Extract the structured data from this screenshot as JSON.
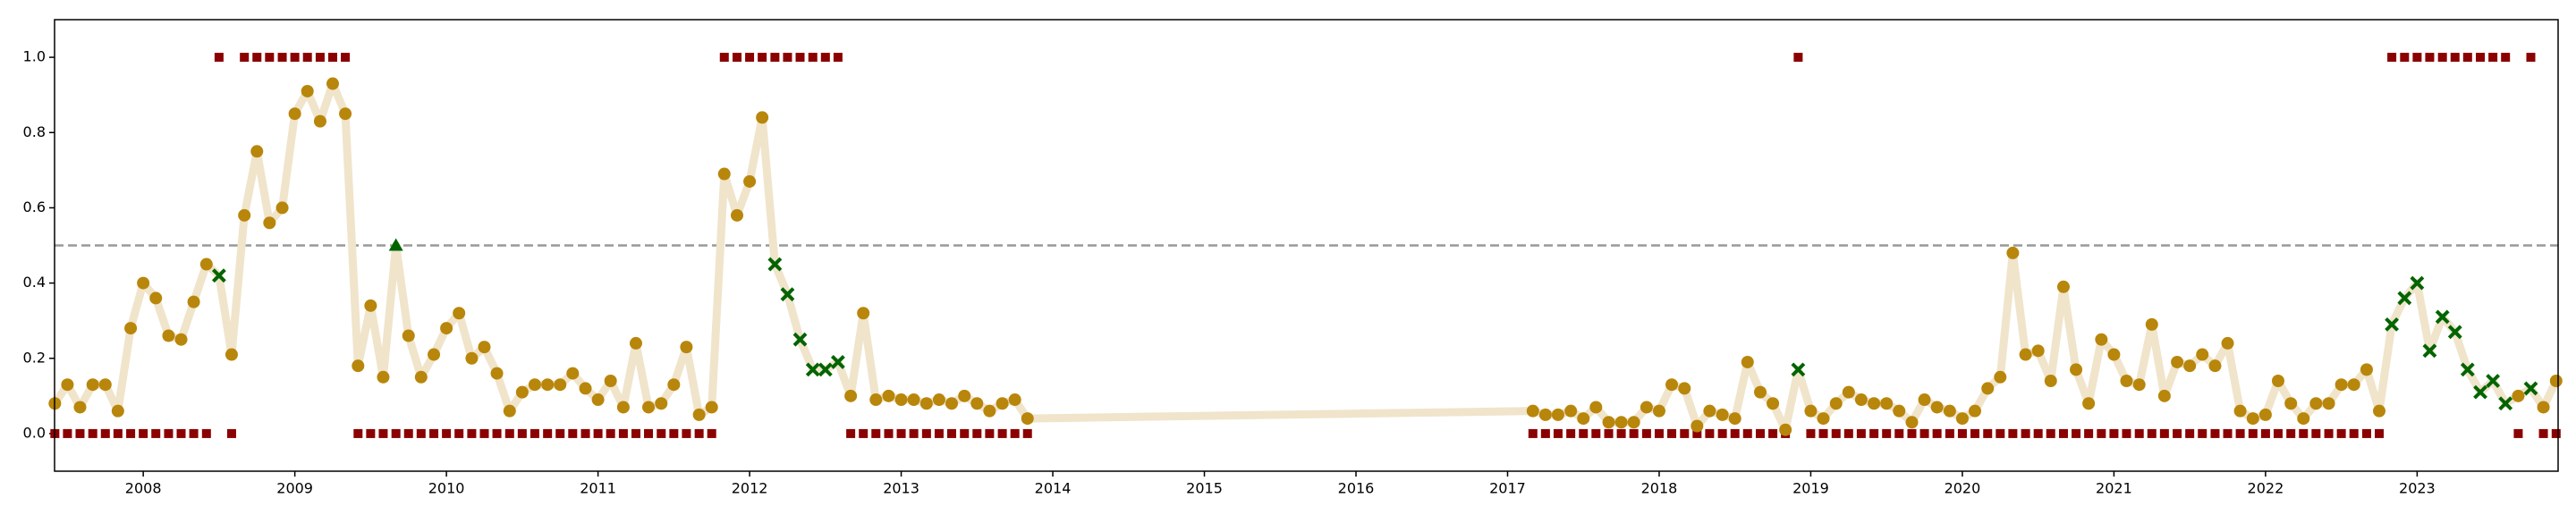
{
  "chart_data": {
    "type": "line",
    "x": [
      2007.417,
      2007.5,
      2007.583,
      2007.667,
      2007.75,
      2007.833,
      2007.917,
      2008,
      2008.083,
      2008.167,
      2008.25,
      2008.333,
      2008.417,
      2008.5,
      2008.583,
      2008.667,
      2008.75,
      2008.833,
      2008.917,
      2009,
      2009.083,
      2009.167,
      2009.25,
      2009.333,
      2009.417,
      2009.5,
      2009.583,
      2009.667,
      2009.75,
      2009.833,
      2009.917,
      2010,
      2010.083,
      2010.167,
      2010.25,
      2010.333,
      2010.417,
      2010.5,
      2010.583,
      2010.667,
      2010.75,
      2010.833,
      2010.917,
      2011,
      2011.083,
      2011.167,
      2011.25,
      2011.333,
      2011.417,
      2011.5,
      2011.583,
      2011.667,
      2011.75,
      2011.833,
      2011.917,
      2012,
      2012.083,
      2012.167,
      2012.25,
      2012.333,
      2012.417,
      2012.5,
      2012.583,
      2012.667,
      2012.75,
      2012.833,
      2012.917,
      2013,
      2013.083,
      2013.167,
      2013.25,
      2013.333,
      2013.417,
      2013.5,
      2013.583,
      2013.667,
      2013.75,
      2013.833,
      2017.167,
      2017.25,
      2017.333,
      2017.417,
      2017.5,
      2017.583,
      2017.667,
      2017.75,
      2017.833,
      2017.917,
      2018,
      2018.083,
      2018.167,
      2018.25,
      2018.333,
      2018.417,
      2018.5,
      2018.583,
      2018.667,
      2018.75,
      2018.833,
      2018.917,
      2019,
      2019.083,
      2019.167,
      2019.25,
      2019.333,
      2019.417,
      2019.5,
      2019.583,
      2019.667,
      2019.75,
      2019.833,
      2019.917,
      2020,
      2020.083,
      2020.167,
      2020.25,
      2020.333,
      2020.417,
      2020.5,
      2020.583,
      2020.667,
      2020.75,
      2020.833,
      2020.917,
      2021,
      2021.083,
      2021.167,
      2021.25,
      2021.333,
      2021.417,
      2021.5,
      2021.583,
      2021.667,
      2021.75,
      2021.833,
      2021.917,
      2022,
      2022.083,
      2022.167,
      2022.25,
      2022.333,
      2022.417,
      2022.5,
      2022.583,
      2022.667,
      2022.75,
      2022.833,
      2022.917,
      2023,
      2023.083,
      2023.167,
      2023.25,
      2023.333,
      2023.417,
      2023.5,
      2023.583,
      2023.667,
      2023.75,
      2023.833,
      2023.917
    ],
    "series": [
      {
        "color": "#b8860b",
        "line_color": "#f0e4cb",
        "miss_color": "#006400",
        "values": [
          0.08,
          0.13,
          0.07,
          0.13,
          0.13,
          0.06,
          0.28,
          0.4,
          0.36,
          0.26,
          0.25,
          0.35,
          0.45,
          0.42,
          0.21,
          0.58,
          0.75,
          0.56,
          0.6,
          0.85,
          0.91,
          0.83,
          0.93,
          0.85,
          0.18,
          0.34,
          0.15,
          0.5,
          0.26,
          0.15,
          0.21,
          0.28,
          0.32,
          0.2,
          0.23,
          0.16,
          0.06,
          0.11,
          0.13,
          0.13,
          0.13,
          0.16,
          0.12,
          0.09,
          0.14,
          0.07,
          0.24,
          0.07,
          0.08,
          0.13,
          0.23,
          0.05,
          0.07,
          0.69,
          0.58,
          0.67,
          0.84,
          0.45,
          0.37,
          0.25,
          0.17,
          0.17,
          0.19,
          0.1,
          0.32,
          0.09,
          0.1,
          0.09,
          0.09,
          0.08,
          0.09,
          0.08,
          0.1,
          0.08,
          0.06,
          0.08,
          0.09,
          0.04,
          0.06,
          0.05,
          0.05,
          0.06,
          0.04,
          0.07,
          0.03,
          0.03,
          0.03,
          0.07,
          0.06,
          0.13,
          0.12,
          0.02,
          0.06,
          0.05,
          0.04,
          0.19,
          0.11,
          0.08,
          0.01,
          0.17,
          0.06,
          0.04,
          0.08,
          0.11,
          0.09,
          0.08,
          0.08,
          0.06,
          0.03,
          0.09,
          0.07,
          0.06,
          0.04,
          0.06,
          0.12,
          0.15,
          0.48,
          0.21,
          0.22,
          0.14,
          0.39,
          0.17,
          0.08,
          0.25,
          0.21,
          0.14,
          0.13,
          0.29,
          0.1,
          0.19,
          0.18,
          0.21,
          0.18,
          0.24,
          0.06,
          0.04,
          0.05,
          0.14,
          0.08,
          0.04,
          0.08,
          0.08,
          0.13,
          0.13,
          0.17,
          0.06,
          0.29,
          0.36,
          0.4,
          0.22,
          0.31,
          0.27,
          0.17,
          0.11,
          0.14,
          0.08,
          0.1,
          0.12,
          0.07,
          0.14
        ]
      },
      {
        "color": "#8b0000",
        "marker": "square",
        "values": [
          0,
          0,
          0,
          0,
          0,
          0,
          0,
          0,
          0,
          0,
          0,
          0,
          0,
          1,
          0,
          1,
          1,
          1,
          1,
          1,
          1,
          1,
          1,
          1,
          0,
          0,
          0,
          0,
          0,
          0,
          0,
          0,
          0,
          0,
          0,
          0,
          0,
          0,
          0,
          0,
          0,
          0,
          0,
          0,
          0,
          0,
          0,
          0,
          0,
          0,
          0,
          0,
          0,
          1,
          1,
          1,
          1,
          1,
          1,
          1,
          1,
          1,
          1,
          0,
          0,
          0,
          0,
          0,
          0,
          0,
          0,
          0,
          0,
          0,
          0,
          0,
          0,
          0,
          0,
          0,
          0,
          0,
          0,
          0,
          0,
          0,
          0,
          0,
          0,
          0,
          0,
          0,
          0,
          0,
          0,
          0,
          0,
          0,
          0,
          1,
          0,
          0,
          0,
          0,
          0,
          0,
          0,
          0,
          0,
          0,
          0,
          0,
          0,
          0,
          0,
          0,
          0,
          0,
          0,
          0,
          0,
          0,
          0,
          0,
          0,
          0,
          0,
          0,
          0,
          0,
          0,
          0,
          0,
          0,
          0,
          0,
          0,
          0,
          0,
          0,
          0,
          0,
          0,
          0,
          0,
          0,
          1,
          1,
          1,
          1,
          1,
          1,
          1,
          1,
          1,
          1,
          0,
          1,
          0,
          0
        ]
      }
    ],
    "threshold": 0.5,
    "xlim": [
      2007.415,
      2023.93
    ],
    "ylim": [
      -0.1,
      1.1
    ],
    "xticks": [
      2008,
      2009,
      2010,
      2011,
      2012,
      2013,
      2014,
      2015,
      2016,
      2017,
      2018,
      2019,
      2020,
      2021,
      2022,
      2023
    ],
    "yticks": [
      {
        "value": 0,
        "label": "0.0"
      },
      0.2,
      0.4,
      0.6,
      0.8,
      {
        "value": 1,
        "label": "1.0"
      }
    ]
  }
}
